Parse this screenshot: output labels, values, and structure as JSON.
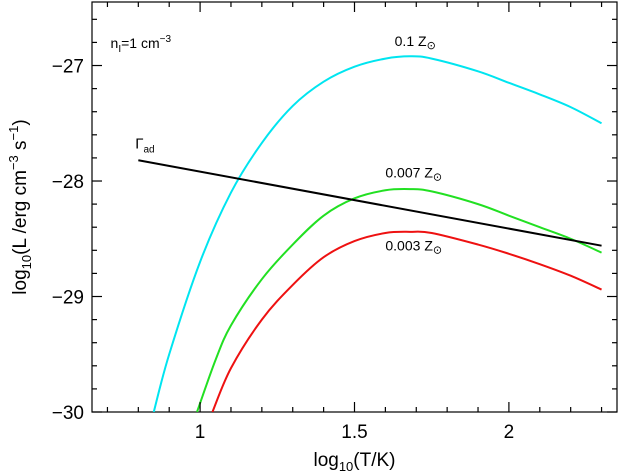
{
  "chart_data": {
    "type": "line",
    "xlabel": "log10(T/K)",
    "ylabel": "log10(L /erg cm^-3 s^-1)",
    "xlim": [
      0.65,
      2.35
    ],
    "ylim": [
      -30,
      -26.45
    ],
    "x_major_ticks": [
      1,
      1.5,
      2
    ],
    "x_tick_labels": [
      "1",
      "1.5",
      "2"
    ],
    "y_major_ticks": [
      -30,
      -29,
      -28,
      -27
    ],
    "y_tick_labels": [
      "−30",
      "−29",
      "−28",
      "−27"
    ],
    "annotation": "n = 1 cm^-3",
    "series": [
      {
        "name": "0.1 Z⊙",
        "color": "#00e5f0",
        "x": [
          0.85,
          0.9,
          1.0,
          1.1,
          1.2,
          1.3,
          1.4,
          1.5,
          1.6,
          1.68,
          1.75,
          1.9,
          2.0,
          2.1,
          2.2,
          2.3
        ],
        "y": [
          -30.0,
          -29.5,
          -28.7,
          -28.1,
          -27.67,
          -27.35,
          -27.14,
          -27.01,
          -26.94,
          -26.92,
          -26.94,
          -27.05,
          -27.15,
          -27.25,
          -27.36,
          -27.5
        ]
      },
      {
        "name": "0.007 Z⊙",
        "color": "#22e022",
        "x": [
          0.99,
          1.05,
          1.1,
          1.2,
          1.3,
          1.4,
          1.5,
          1.6,
          1.68,
          1.75,
          1.9,
          2.0,
          2.1,
          2.2,
          2.3
        ],
        "y": [
          -30.0,
          -29.55,
          -29.25,
          -28.85,
          -28.55,
          -28.3,
          -28.15,
          -28.08,
          -28.07,
          -28.09,
          -28.2,
          -28.3,
          -28.4,
          -28.5,
          -28.62
        ]
      },
      {
        "name": "0.003 Z⊙",
        "color": "#ee1111",
        "x": [
          1.04,
          1.1,
          1.2,
          1.3,
          1.4,
          1.5,
          1.6,
          1.68,
          1.75,
          1.9,
          2.0,
          2.1,
          2.2,
          2.3
        ],
        "y": [
          -30.0,
          -29.62,
          -29.2,
          -28.9,
          -28.66,
          -28.52,
          -28.45,
          -28.44,
          -28.45,
          -28.55,
          -28.63,
          -28.72,
          -28.82,
          -28.94
        ]
      },
      {
        "name": "Γad",
        "color": "#000000",
        "x": [
          0.8,
          2.3
        ],
        "y": [
          -27.82,
          -28.56
        ]
      }
    ],
    "curve_labels": [
      {
        "text": "0.1 Z⊙",
        "x": 1.63,
        "y": -26.83,
        "series": 0
      },
      {
        "text": "0.007 Z⊙",
        "x": 1.6,
        "y": -27.97,
        "series": 1
      },
      {
        "text": "0.003 Z⊙",
        "x": 1.6,
        "y": -28.6,
        "series": 2
      },
      {
        "text": "Γad",
        "x": 0.79,
        "y": -27.72,
        "series": 3
      }
    ]
  }
}
